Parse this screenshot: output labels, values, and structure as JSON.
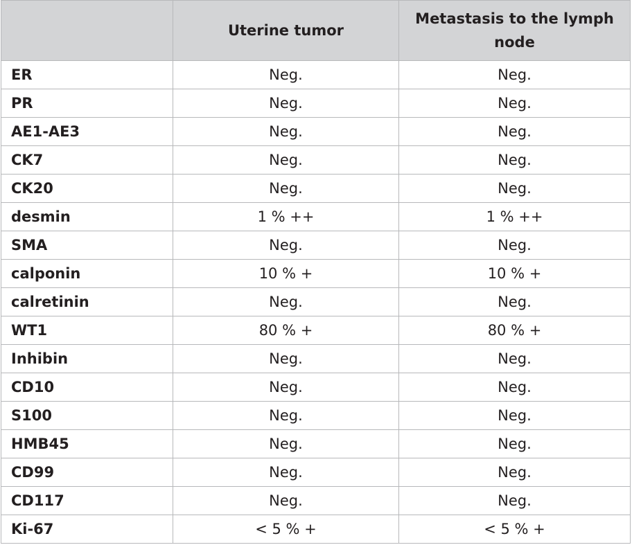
{
  "table": {
    "columns": [
      "",
      "Uterine tumor",
      "Metastasis to the lymph node"
    ],
    "rows": [
      {
        "marker": "ER",
        "uterine": "Neg.",
        "lymph": "Neg."
      },
      {
        "marker": "PR",
        "uterine": "Neg.",
        "lymph": "Neg."
      },
      {
        "marker": "AE1-AE3",
        "uterine": "Neg.",
        "lymph": "Neg."
      },
      {
        "marker": "CK7",
        "uterine": "Neg.",
        "lymph": "Neg."
      },
      {
        "marker": "CK20",
        "uterine": "Neg.",
        "lymph": "Neg."
      },
      {
        "marker": "desmin",
        "uterine": "1 % ++",
        "lymph": "1 % ++"
      },
      {
        "marker": "SMA",
        "uterine": "Neg.",
        "lymph": "Neg."
      },
      {
        "marker": "calponin",
        "uterine": "10 % +",
        "lymph": "10 % +"
      },
      {
        "marker": "calretinin",
        "uterine": "Neg.",
        "lymph": "Neg."
      },
      {
        "marker": "WT1",
        "uterine": "80 % +",
        "lymph": "80 % +"
      },
      {
        "marker": "Inhibin",
        "uterine": "Neg.",
        "lymph": "Neg."
      },
      {
        "marker": "CD10",
        "uterine": "Neg.",
        "lymph": "Neg."
      },
      {
        "marker": "S100",
        "uterine": "Neg.",
        "lymph": "Neg."
      },
      {
        "marker": "HMB45",
        "uterine": "Neg.",
        "lymph": "Neg."
      },
      {
        "marker": "CD99",
        "uterine": "Neg.",
        "lymph": "Neg."
      },
      {
        "marker": "CD117",
        "uterine": "Neg.",
        "lymph": "Neg."
      },
      {
        "marker": "Ki-67",
        "uterine": "< 5 % +",
        "lymph": "< 5 % +"
      }
    ]
  }
}
